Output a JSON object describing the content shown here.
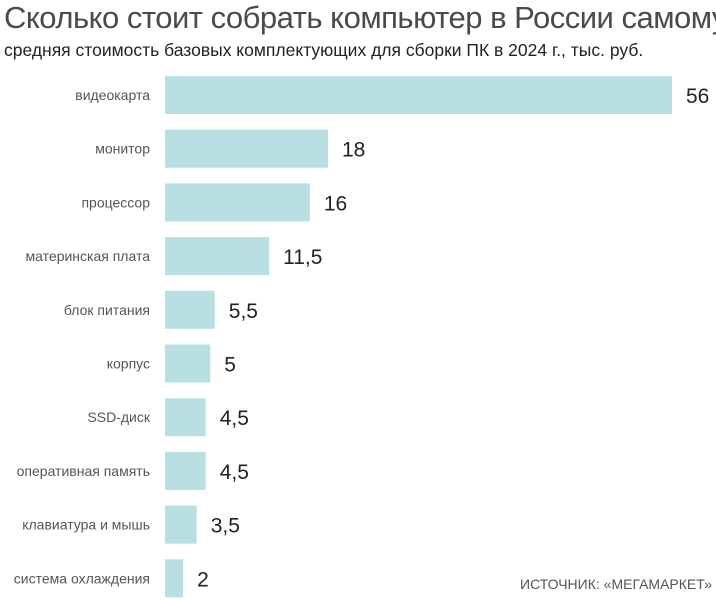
{
  "chart_data": {
    "type": "bar",
    "orientation": "horizontal",
    "title": "Сколько стоит собрать компьютер в России самому",
    "subtitle": "средняя стоимость базовых комплектующих для сборки ПК в 2024 г., тыс. руб.",
    "categories": [
      "видеокарта",
      "монитор",
      "процессор",
      "материнская плата",
      "блок питания",
      "корпус",
      "SSD-диск",
      "оперативная память",
      "клавиатура и мышь",
      "система охлаждения"
    ],
    "values": [
      56,
      18,
      16,
      11.5,
      5.5,
      5,
      4.5,
      4.5,
      3.5,
      2
    ],
    "value_labels": [
      "56",
      "18",
      "16",
      "11,5",
      "5,5",
      "5",
      "4,5",
      "4,5",
      "3,5",
      "2"
    ],
    "xlim": [
      0,
      56
    ],
    "grid": false,
    "bar_color": "#b8dfe1",
    "source": "ИСТОЧНИК: «МЕГАМАРКЕТ»"
  }
}
